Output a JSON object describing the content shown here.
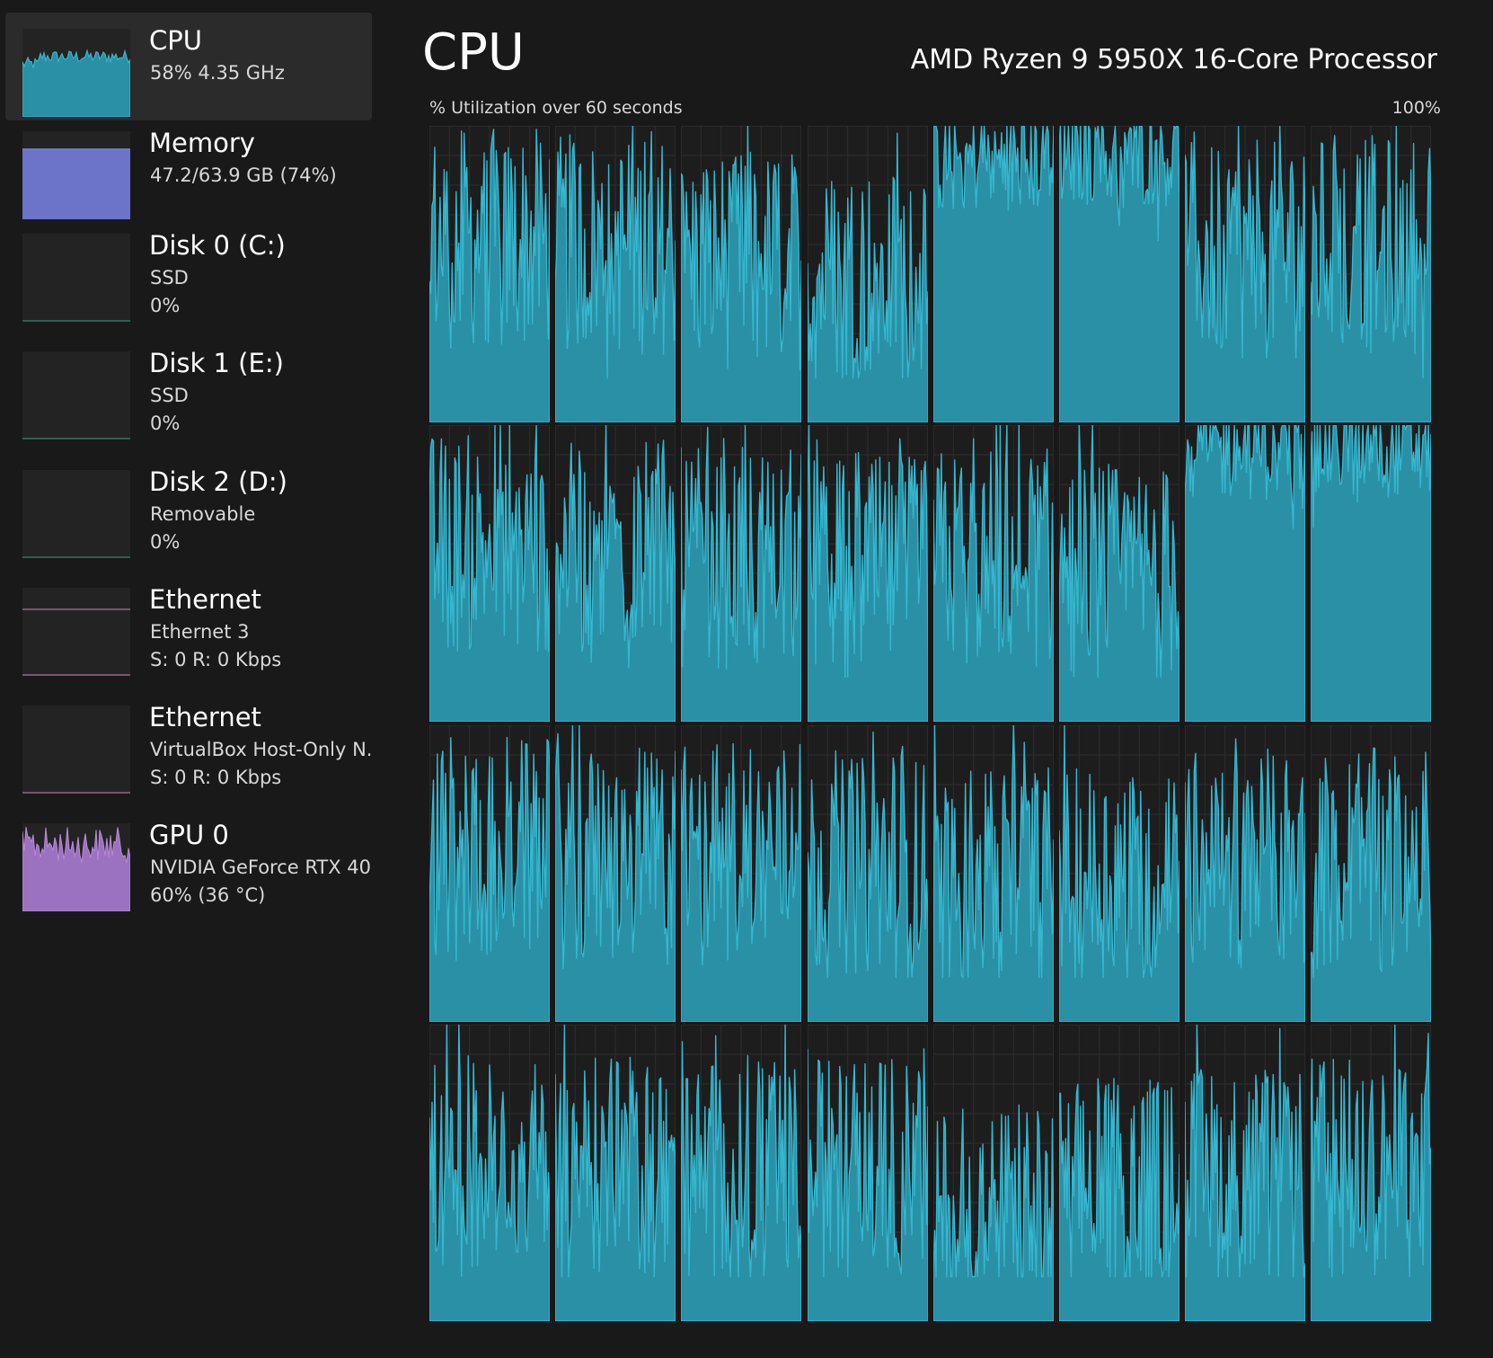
{
  "sidebar": {
    "items": [
      {
        "title": "CPU",
        "line1": "58%  4.35 GHz",
        "line2": "",
        "graph": "cpu",
        "color": "#35b7cf",
        "fill": "#2a90a6",
        "selected": true
      },
      {
        "title": "Memory",
        "line1": "47.2/63.9 GB (74%)",
        "line2": "",
        "graph": "memory",
        "color": "#7b84d8",
        "fill": "#6b74c9",
        "selected": false
      },
      {
        "title": "Disk 0 (C:)",
        "line1": "SSD",
        "line2": "0%",
        "graph": "flat",
        "color": "#3e9a82",
        "fill": "#3e9a82",
        "selected": false
      },
      {
        "title": "Disk 1 (E:)",
        "line1": "SSD",
        "line2": "0%",
        "graph": "flat",
        "color": "#3e9a82",
        "fill": "#3e9a82",
        "selected": false
      },
      {
        "title": "Disk 2 (D:)",
        "line1": "Removable",
        "line2": "0%",
        "graph": "flat",
        "color": "#3e9a82",
        "fill": "#3e9a82",
        "selected": false
      },
      {
        "title": "Ethernet",
        "line1": "Ethernet 3",
        "line2": "S: 0  R: 0 Kbps",
        "graph": "ethernet",
        "color": "#c88ab8",
        "fill": "#c88ab8",
        "selected": false
      },
      {
        "title": "Ethernet",
        "line1": "VirtualBox Host-Only N.",
        "line2": "S: 0  R: 0 Kbps",
        "graph": "flat",
        "color": "#c88ab8",
        "fill": "#c88ab8",
        "selected": false
      },
      {
        "title": "GPU 0",
        "line1": "NVIDIA GeForce RTX 40",
        "line2": "60%  (36 °C)",
        "graph": "gpu",
        "color": "#b88ad8",
        "fill": "#9a72c0",
        "selected": false
      }
    ]
  },
  "main": {
    "title": "CPU",
    "processor": "AMD Ryzen 9 5950X 16-Core Processor",
    "utilization_label": "% Utilization over 60 seconds",
    "max_label": "100%"
  },
  "colors": {
    "background": "#191919",
    "cpu_line": "#35b7cf",
    "cpu_fill": "#2a90a6",
    "grid_line": "#2e2e2e"
  },
  "cores": {
    "rows": 4,
    "cols": 8,
    "mean_utilization": [
      0.62,
      0.6,
      0.55,
      0.5,
      0.88,
      0.9,
      0.58,
      0.6,
      0.6,
      0.58,
      0.55,
      0.52,
      0.55,
      0.5,
      0.92,
      0.93,
      0.58,
      0.55,
      0.58,
      0.52,
      0.5,
      0.5,
      0.55,
      0.55,
      0.52,
      0.52,
      0.5,
      0.52,
      0.35,
      0.45,
      0.48,
      0.52
    ]
  }
}
